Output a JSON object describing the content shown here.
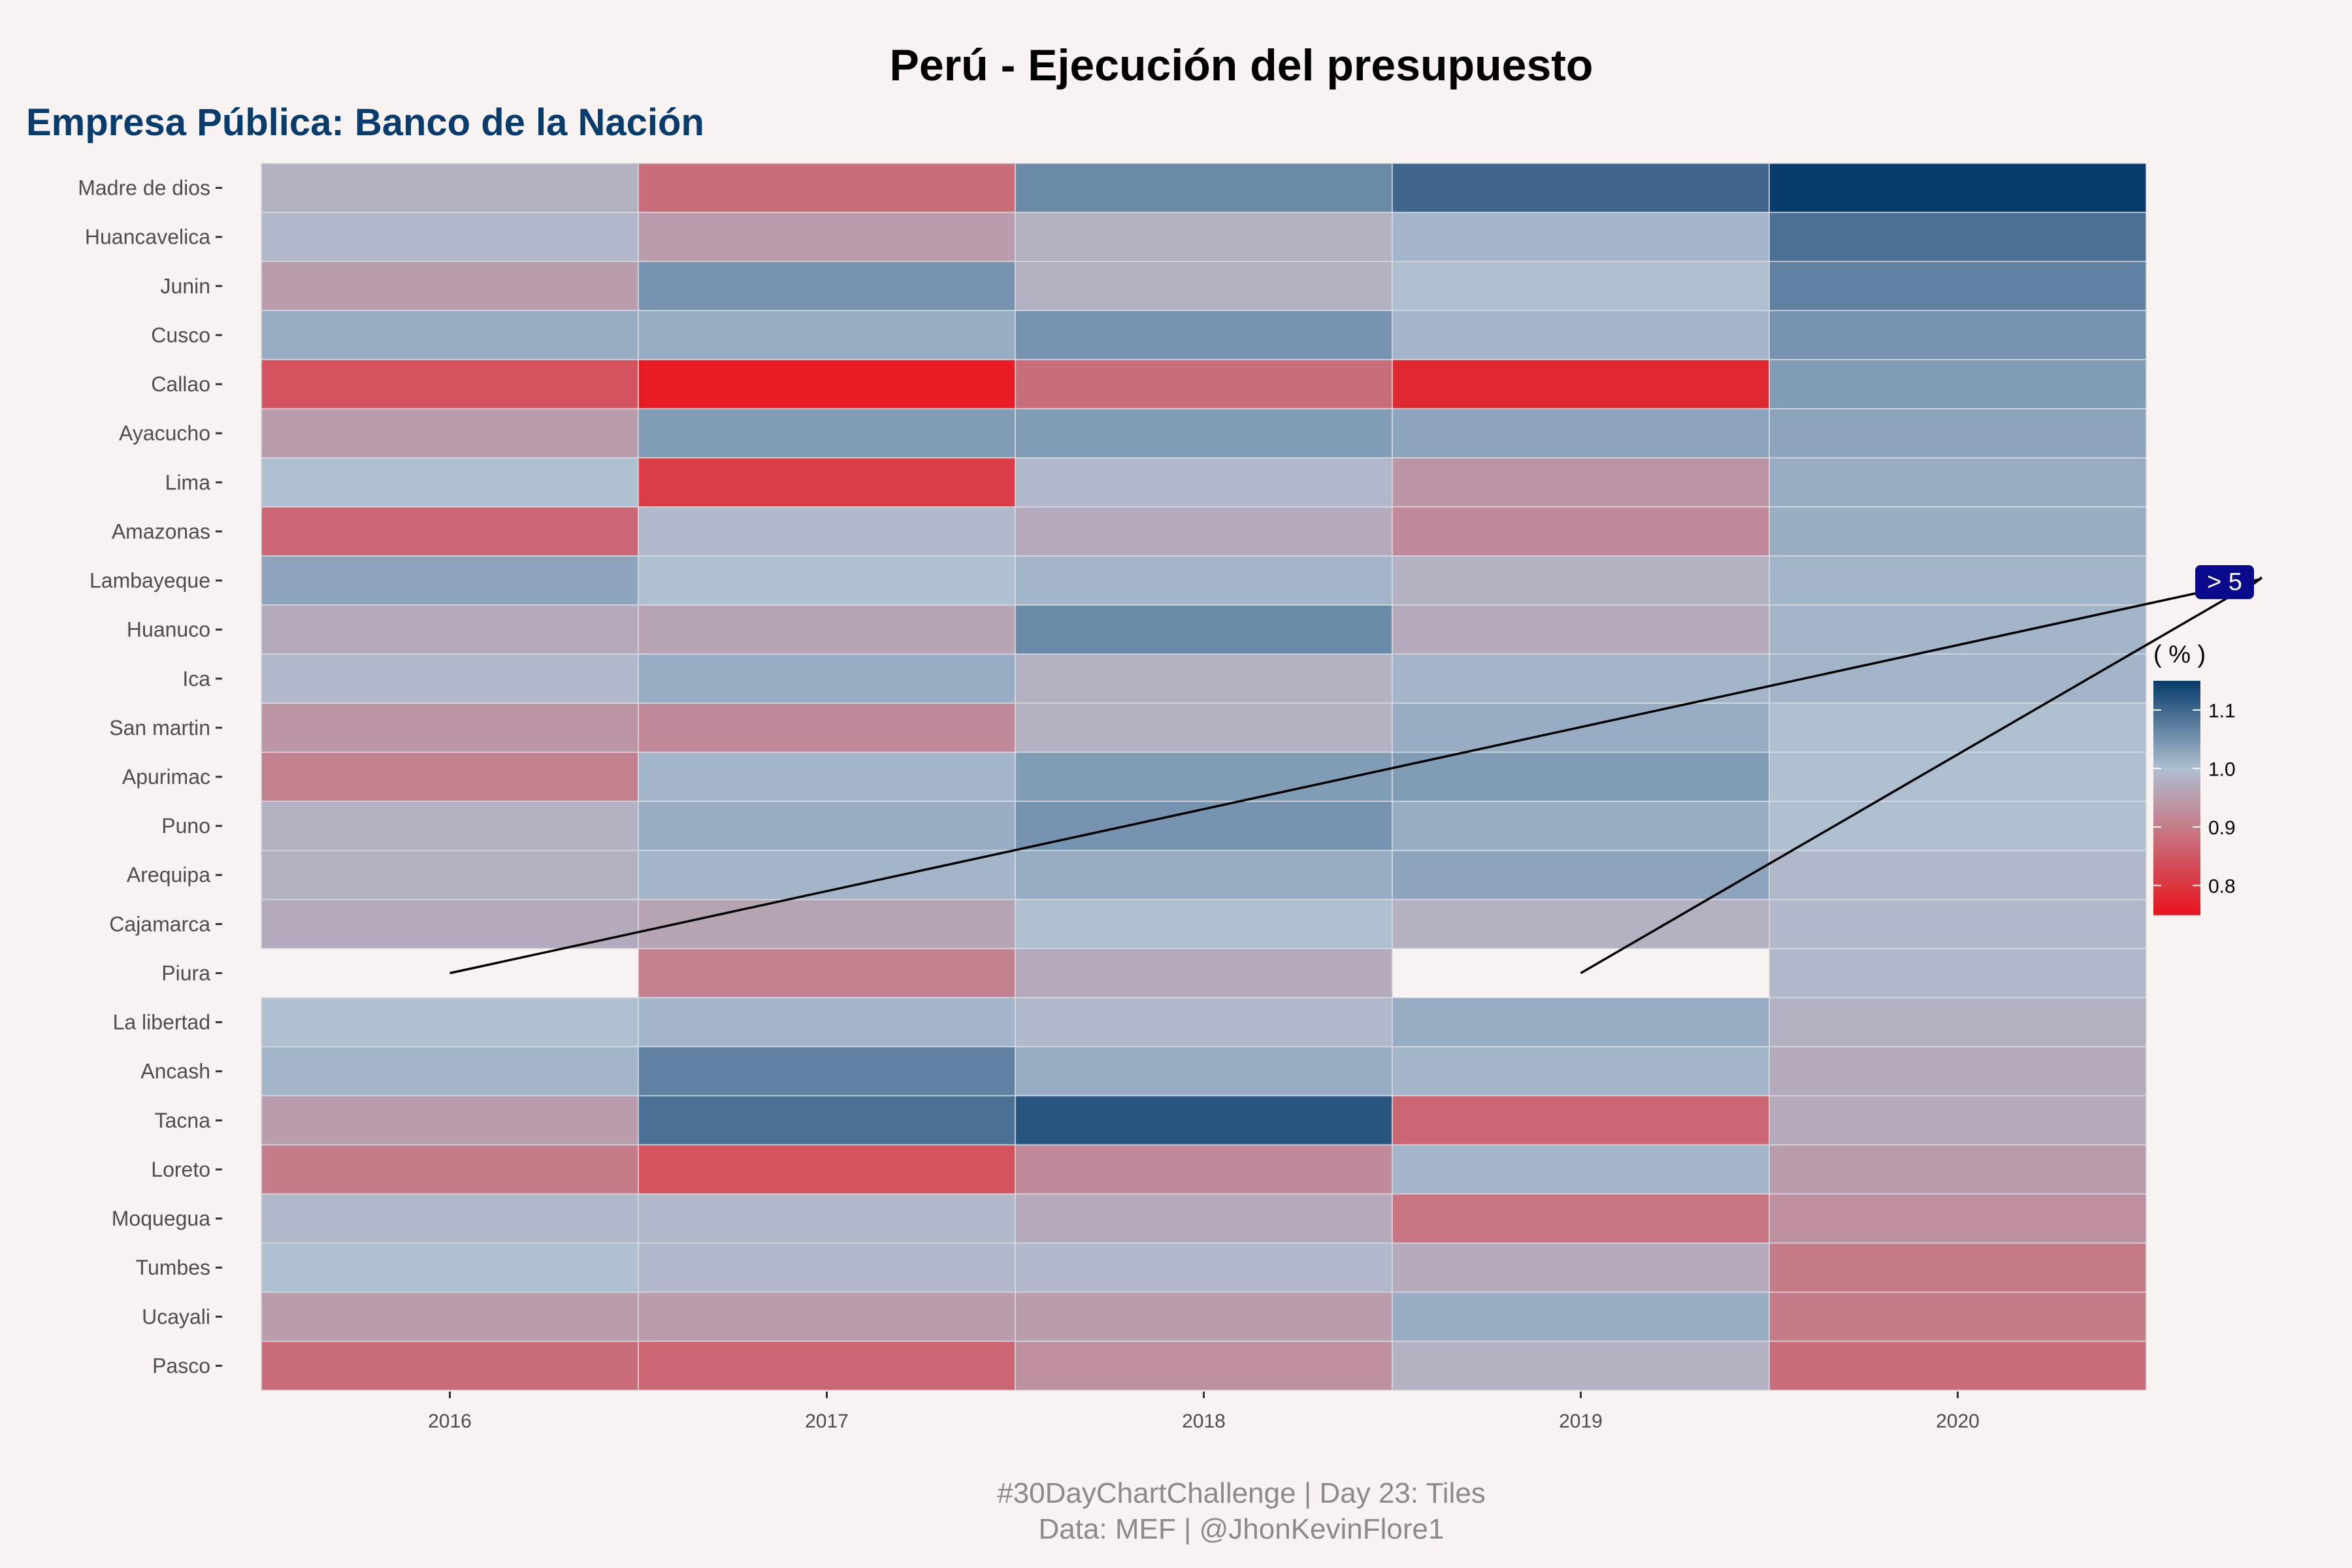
{
  "chart_data": {
    "type": "heatmap",
    "title": "Perú - Ejecución del presupuesto",
    "subtitle": "Empresa Pública: Banco de la Nación",
    "categories_x": [
      "2016",
      "2017",
      "2018",
      "2019",
      "2020"
    ],
    "categories_y": [
      "Madre de dios",
      "Huancavelica",
      "Junin",
      "Cusco",
      "Callao",
      "Ayacucho",
      "Lima",
      "Amazonas",
      "Lambayeque",
      "Huanuco",
      "Ica",
      "San martin",
      "Apurimac",
      "Puno",
      "Arequipa",
      "Cajamarca",
      "Piura",
      "La libertad",
      "Ancash",
      "Tacna",
      "Loreto",
      "Moquegua",
      "Tumbes",
      "Ucayali",
      "Pasco"
    ],
    "values": [
      [
        0.98,
        0.88,
        1.06,
        1.1,
        1.15
      ],
      [
        0.99,
        0.95,
        0.98,
        1.01,
        1.09
      ],
      [
        0.95,
        1.05,
        0.98,
        1.0,
        1.07
      ],
      [
        1.02,
        1.02,
        1.05,
        1.01,
        1.05
      ],
      [
        0.84,
        0.76,
        0.88,
        0.78,
        1.04
      ],
      [
        0.95,
        1.04,
        1.04,
        1.03,
        1.03
      ],
      [
        1.0,
        0.81,
        0.99,
        0.94,
        1.02
      ],
      [
        0.87,
        0.99,
        0.97,
        0.92,
        1.02
      ],
      [
        1.03,
        1.0,
        1.01,
        0.98,
        1.01
      ],
      [
        0.97,
        0.96,
        1.06,
        0.97,
        1.01
      ],
      [
        0.99,
        1.02,
        0.98,
        1.01,
        1.01
      ],
      [
        0.94,
        0.92,
        0.98,
        1.02,
        1.0
      ],
      [
        0.91,
        1.01,
        1.04,
        1.04,
        1.0
      ],
      [
        0.98,
        1.02,
        1.05,
        1.02,
        1.0
      ],
      [
        0.98,
        1.01,
        1.02,
        1.03,
        0.99
      ],
      [
        0.97,
        0.96,
        1.0,
        0.98,
        0.99
      ],
      [
        null,
        0.91,
        0.97,
        null,
        0.99
      ],
      [
        1.0,
        1.01,
        0.99,
        1.02,
        0.98
      ],
      [
        1.01,
        1.07,
        1.02,
        1.01,
        0.97
      ],
      [
        0.95,
        1.09,
        1.12,
        0.87,
        0.97
      ],
      [
        0.9,
        0.84,
        0.92,
        1.01,
        0.95
      ],
      [
        0.99,
        0.99,
        0.97,
        0.89,
        0.93
      ],
      [
        1.0,
        0.99,
        0.99,
        0.97,
        0.9
      ],
      [
        0.95,
        0.95,
        0.95,
        1.02,
        0.9
      ],
      [
        0.88,
        0.87,
        0.93,
        0.98,
        0.88
      ]
    ],
    "legend": {
      "title": "( % )",
      "ticks": [
        "1.1",
        "1.0",
        "0.9",
        "0.8"
      ],
      "tick_values": [
        1.1,
        1.0,
        0.9,
        0.8
      ],
      "range": [
        0.75,
        1.15
      ],
      "colors": {
        "low": "#e8141d",
        "mid": "#aebfd0",
        "high": "#073b6c"
      },
      "placement": "right"
    },
    "annotation": {
      "label": "> 5",
      "color": "#0a0a8c",
      "points_to": [
        [
          "Piura",
          "2016"
        ],
        [
          "Piura",
          "2019"
        ]
      ]
    },
    "grid": false
  },
  "caption": {
    "line1": "#30DayChartChallenge | Day 23: Tiles",
    "line2": "Data: MEF |  @JhonKevinFlore1"
  }
}
